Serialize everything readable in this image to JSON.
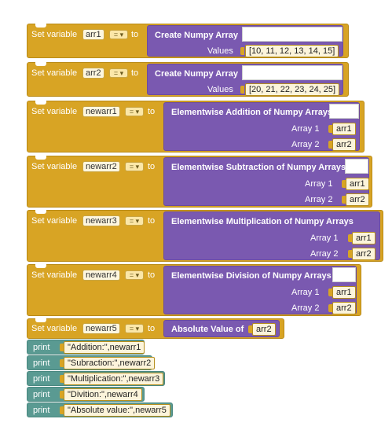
{
  "keywords": {
    "set_variable": "Set variable",
    "to": "to",
    "dropdown_op": "=",
    "dropdown_arrow": "▾",
    "print": "print"
  },
  "blocks": [
    {
      "variable": "arr1",
      "function": "Create Numpy Array",
      "inputs": [
        {
          "label": "Values",
          "value": "[10, 11, 12, 13, 14, 15]"
        }
      ]
    },
    {
      "variable": "arr2",
      "function": "Create Numpy Array",
      "inputs": [
        {
          "label": "Values",
          "value": "[20, 21, 22, 23, 24, 25]"
        }
      ]
    },
    {
      "variable": "newarr1",
      "function": "Elementwise Addition of Numpy Arrays",
      "inputs": [
        {
          "label": "Array 1",
          "value": "arr1"
        },
        {
          "label": "Array 2",
          "value": "arr2"
        }
      ]
    },
    {
      "variable": "newarr2",
      "function": "Elementwise Subtraction of Numpy Arrays",
      "inputs": [
        {
          "label": "Array 1",
          "value": "arr1"
        },
        {
          "label": "Array 2",
          "value": "arr2"
        }
      ]
    },
    {
      "variable": "newarr3",
      "function": "Elementwise Multiplication of Numpy Arrays",
      "inputs": [
        {
          "label": "Array 1",
          "value": "arr1"
        },
        {
          "label": "Array 2",
          "value": "arr2"
        }
      ]
    },
    {
      "variable": "newarr4",
      "function": "Elementwise Division of Numpy Arrays",
      "inputs": [
        {
          "label": "Array 1",
          "value": "arr1"
        },
        {
          "label": "Array 2",
          "value": "arr2"
        }
      ]
    },
    {
      "variable": "newarr5",
      "function": "Absolute Value of",
      "inputs": [
        {
          "label": "",
          "value": "arr2"
        }
      ]
    }
  ],
  "prints": [
    {
      "text": "\"Addition:\",newarr1"
    },
    {
      "text": "\"Subraction:\",newarr2"
    },
    {
      "text": "\"Multiplication:\",newarr3"
    },
    {
      "text": "\"Divition:\",newarr4"
    },
    {
      "text": "\"Absolute value:\",newarr5"
    }
  ],
  "colors": {
    "variables_block": "#d8a424",
    "function_block": "#7a59b0",
    "print_block": "#5a9a92"
  }
}
